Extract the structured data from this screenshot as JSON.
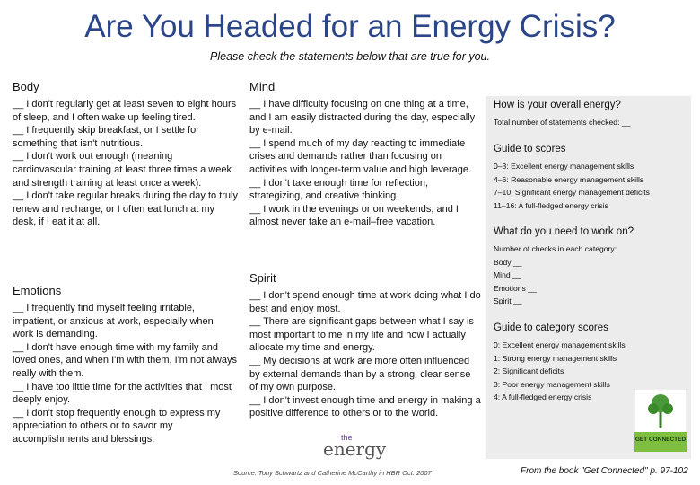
{
  "header": {
    "title": "Are You Headed for an Energy Crisis?",
    "subtitle": "Please check the statements below that are true for you."
  },
  "sections": {
    "body": {
      "heading": "Body",
      "items": [
        "__ I don't regularly get at least seven to eight hours of sleep, and I often wake up feeling tired.",
        "__ I frequently skip breakfast, or I settle for something that isn't nutritious.",
        "__ I don't work out enough (meaning cardiovascular training at least three times a week and strength training at least once a week).",
        "__ I don't take regular breaks during the day to truly renew and recharge, or I often eat lunch at my desk, if I eat it at all."
      ]
    },
    "emotions": {
      "heading": "Emotions",
      "items": [
        "__ I frequently find myself feeling irritable, impatient, or anxious at work, especially when work is demanding.",
        "__ I don't have enough time with my family and loved ones, and when I'm with them, I'm not always really with them.",
        "__ I have too little time for the activities that I most deeply enjoy.",
        "__ I don't stop frequently enough to express my appreciation to others or to savor my accomplishments and blessings."
      ]
    },
    "mind": {
      "heading": "Mind",
      "items": [
        "__ I have difficulty focusing on one thing at a time, and I am easily distracted during the day, especially by e-mail.",
        "__ I spend much of my day reacting to immediate crises and demands rather than focusing on activities with longer-term value and high leverage.",
        "__ I don't take enough time for reflection, strategizing, and creative thinking.",
        "__ I work in the evenings or on weekends, and I almost never take an e-mail–free vacation."
      ]
    },
    "spirit": {
      "heading": "Spirit",
      "items": [
        "__ I don't spend enough time at work doing what I do best and enjoy most.",
        "__ There are significant gaps between what I say is most important to me in my life and how I actually allocate my time and energy.",
        "__ My decisions at work are more often influenced by external demands than by a strong, clear sense of my own purpose.",
        "__ I don't invest enough time and energy in making a positive difference to others or to the world."
      ]
    }
  },
  "panel": [
    {
      "heading": "How is your overall energy?",
      "lines": [
        "Total number of statements checked: __"
      ]
    },
    {
      "heading": "Guide to scores",
      "lines": [
        "0–3: Excellent energy management skills",
        "4–6: Reasonable energy management skills",
        "7–10: Significant energy management deficits",
        "11–16: A full-fledged energy crisis"
      ]
    },
    {
      "heading": "What do you need to work on?",
      "lines": [
        "Number of checks in each category:",
        "Body __",
        "Mind __",
        "Emotions __",
        "Spirit __"
      ]
    },
    {
      "heading": "Guide to category scores",
      "lines": [
        "0: Excellent energy management skills",
        "1: Strong energy management skills",
        "2: Significant deficits",
        "3: Poor energy management skills",
        "4: A full-fledged energy crisis"
      ]
    }
  ],
  "logo": {
    "small": "the",
    "large": "energy"
  },
  "book_cover": "GET CONNECTED",
  "footer": {
    "source": "Source: Tony Schwartz and Catherine McCarthy in HBR Oct. 2007",
    "book": "From the book \"Get Connected\" p. 97-102"
  }
}
